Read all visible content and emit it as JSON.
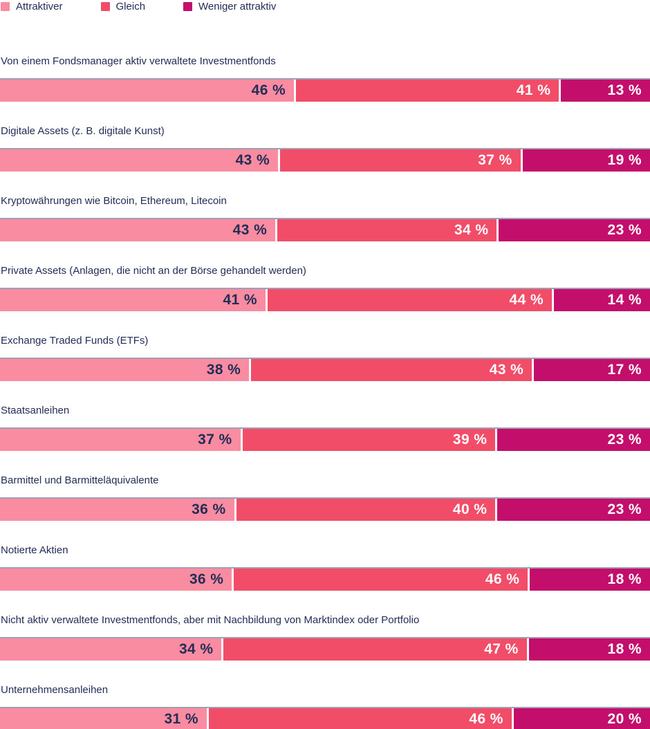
{
  "colors": {
    "attraktiver": "#FA8CA2",
    "gleich": "#F24D68",
    "weniger_attraktiv": "#C40E6B",
    "text_navy": "#222D58",
    "value_on_light": "#222D58",
    "value_on_dark": "#FFFFFF",
    "bar_top_rule": "rgba(34,45,88,0.45)"
  },
  "legend": {
    "items": [
      {
        "label": "Attraktiver",
        "color": "#FA8CA2"
      },
      {
        "label": "Gleich",
        "color": "#F24D68"
      },
      {
        "label": "Weniger attraktiv",
        "color": "#C40E6B"
      }
    ]
  },
  "chart_data": {
    "type": "bar",
    "orientation": "horizontal",
    "stacked": true,
    "normalized_to_full_width": true,
    "unit": "%",
    "value_suffix": " %",
    "legend_position": "top",
    "categories": [
      "Von einem Fondsmanager aktiv verwaltete Investmentfonds",
      "Digitale Assets (z. B. digitale Kunst)",
      "Kryptowährungen wie Bitcoin, Ethereum, Litecoin",
      "Private Assets (Anlagen, die nicht an der Börse gehandelt werden)",
      "Exchange Traded Funds (ETFs)",
      "Staatsanleihen",
      "Barmittel und Barmitteläquivalente",
      "Notierte Aktien",
      "Nicht aktiv verwaltete Investmentfonds, aber mit Nachbildung von Marktindex oder Portfolio",
      "Unternehmensanleihen"
    ],
    "series": [
      {
        "name": "Attraktiver",
        "color": "#FA8CA2",
        "value_text_color": "#222D58",
        "values": [
          46,
          43,
          43,
          41,
          38,
          37,
          36,
          36,
          34,
          31
        ]
      },
      {
        "name": "Gleich",
        "color": "#F24D68",
        "value_text_color": "#FFFFFF",
        "values": [
          41,
          37,
          34,
          44,
          43,
          39,
          40,
          46,
          47,
          46
        ]
      },
      {
        "name": "Weniger attraktiv",
        "color": "#C40E6B",
        "value_text_color": "#FFFFFF",
        "values": [
          13,
          19,
          23,
          14,
          17,
          23,
          23,
          18,
          18,
          20
        ]
      }
    ]
  }
}
